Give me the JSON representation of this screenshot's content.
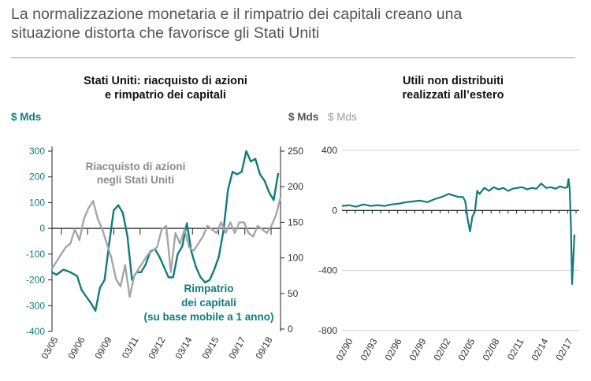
{
  "headline": {
    "line1": "La normalizzazione monetaria e il rimpatrio dei capitali  creano una",
    "line2": "situazione distorta che favorisce gli Stati Uniti"
  },
  "colors": {
    "teal": "#0f7c7c",
    "gray": "#a6a6a6",
    "axis": "#222222",
    "muted": "#9a9a9a"
  },
  "chart_data": [
    {
      "type": "line",
      "title": "Stati Uniti: riacquisto di azioni e rimpatrio dei capitali",
      "title_lines": [
        "Stati Uniti: riacquisto di azioni",
        "e rimpatrio dei capitali"
      ],
      "left_axis": {
        "unit": "$ Mds",
        "ticks": [
          "300",
          "200",
          "100",
          "0",
          "-100",
          "-200",
          "-300",
          "-400"
        ],
        "range": [
          -400,
          300
        ]
      },
      "right_axis": {
        "unit": "$ Mds",
        "ticks": [
          "250",
          "200",
          "150",
          "100",
          "50",
          "0"
        ],
        "range": [
          0,
          250
        ]
      },
      "x_ticks": [
        "03/05",
        "09/06",
        "09/09",
        "03/11",
        "09/12",
        "03/14",
        "09/15",
        "09/17",
        "09/18"
      ],
      "annotations": {
        "buyback": [
          "Riacquisto di azioni",
          "negli Stati Uniti"
        ],
        "repatriation": [
          "Rimpatrio",
          "dei capitali",
          "(su base mobile a 1 anno)"
        ]
      },
      "series": [
        {
          "name": "Rimpatrio dei capitali (su base mobile a 1 anno)",
          "axis": "left",
          "color": "#0f7c7c",
          "t": [
            0,
            0.02,
            0.05,
            0.08,
            0.11,
            0.13,
            0.15,
            0.17,
            0.19,
            0.21,
            0.23,
            0.25,
            0.27,
            0.29,
            0.31,
            0.33,
            0.35,
            0.37,
            0.39,
            0.41,
            0.43,
            0.45,
            0.47,
            0.49,
            0.51,
            0.53,
            0.55,
            0.57,
            0.59,
            0.61,
            0.63,
            0.65,
            0.67,
            0.69,
            0.71,
            0.73,
            0.75,
            0.77,
            0.79,
            0.81,
            0.83,
            0.85,
            0.87,
            0.89,
            0.91,
            0.93,
            0.95,
            0.97,
            0.99
          ],
          "values": [
            -170,
            -180,
            -160,
            -170,
            -185,
            -240,
            -265,
            -290,
            -320,
            -230,
            -200,
            -60,
            70,
            90,
            60,
            -30,
            -200,
            -170,
            -170,
            -140,
            -90,
            -80,
            -110,
            -150,
            -190,
            -190,
            -100,
            -70,
            20,
            -90,
            -150,
            -190,
            -210,
            -200,
            -160,
            -110,
            -10,
            150,
            220,
            210,
            220,
            300,
            260,
            270,
            210,
            185,
            140,
            110,
            215
          ]
        },
        {
          "name": "Riacquisto di azioni negli Stati Uniti",
          "axis": "right",
          "color": "#a6a6a6",
          "t": [
            0,
            0.02,
            0.04,
            0.06,
            0.08,
            0.1,
            0.12,
            0.14,
            0.16,
            0.18,
            0.2,
            0.22,
            0.24,
            0.26,
            0.28,
            0.3,
            0.32,
            0.34,
            0.36,
            0.38,
            0.4,
            0.42,
            0.44,
            0.46,
            0.48,
            0.5,
            0.52,
            0.54,
            0.56,
            0.58,
            0.6,
            0.62,
            0.64,
            0.66,
            0.68,
            0.7,
            0.72,
            0.74,
            0.76,
            0.78,
            0.8,
            0.82,
            0.84,
            0.86,
            0.88,
            0.9,
            0.92,
            0.94,
            0.96,
            0.98,
            1.0
          ],
          "values": [
            85,
            95,
            105,
            115,
            120,
            140,
            125,
            155,
            170,
            180,
            155,
            140,
            120,
            100,
            70,
            60,
            90,
            45,
            75,
            85,
            95,
            105,
            110,
            115,
            140,
            145,
            80,
            135,
            120,
            140,
            115,
            110,
            120,
            130,
            145,
            140,
            135,
            150,
            135,
            150,
            135,
            150,
            150,
            135,
            130,
            145,
            140,
            135,
            145,
            160,
            185
          ]
        }
      ]
    },
    {
      "type": "line",
      "title": "Utili non distribuiti realizzati all’estero",
      "title_lines": [
        "Utili non distribuiti",
        "realizzati all’estero"
      ],
      "y_axis": {
        "unit": "$ Mds",
        "ticks": [
          "400",
          "0",
          "-400",
          "-800"
        ],
        "range": [
          -800,
          400
        ]
      },
      "x_ticks": [
        "02/90",
        "02/93",
        "02/96",
        "02/99",
        "02/02",
        "02/05",
        "02/08",
        "02/11",
        "02/14",
        "02/17"
      ],
      "series": [
        {
          "name": "Utili non distribuiti realizzati all’estero",
          "color": "#0f7c7c",
          "t": [
            0,
            0.03,
            0.06,
            0.09,
            0.12,
            0.15,
            0.18,
            0.21,
            0.24,
            0.27,
            0.3,
            0.33,
            0.36,
            0.39,
            0.42,
            0.45,
            0.47,
            0.49,
            0.51,
            0.52,
            0.53,
            0.54,
            0.55,
            0.56,
            0.57,
            0.58,
            0.6,
            0.62,
            0.64,
            0.66,
            0.68,
            0.7,
            0.72,
            0.74,
            0.76,
            0.78,
            0.8,
            0.82,
            0.84,
            0.86,
            0.88,
            0.9,
            0.92,
            0.94,
            0.95,
            0.955,
            0.96,
            0.965,
            0.97,
            0.98
          ],
          "values": [
            30,
            35,
            25,
            40,
            30,
            35,
            30,
            40,
            45,
            55,
            60,
            65,
            55,
            75,
            90,
            110,
            100,
            90,
            90,
            60,
            -60,
            -140,
            -40,
            -10,
            130,
            110,
            150,
            130,
            155,
            140,
            150,
            130,
            145,
            150,
            155,
            140,
            150,
            145,
            180,
            150,
            155,
            145,
            160,
            150,
            155,
            210,
            140,
            -100,
            -490,
            -160
          ]
        }
      ]
    }
  ]
}
